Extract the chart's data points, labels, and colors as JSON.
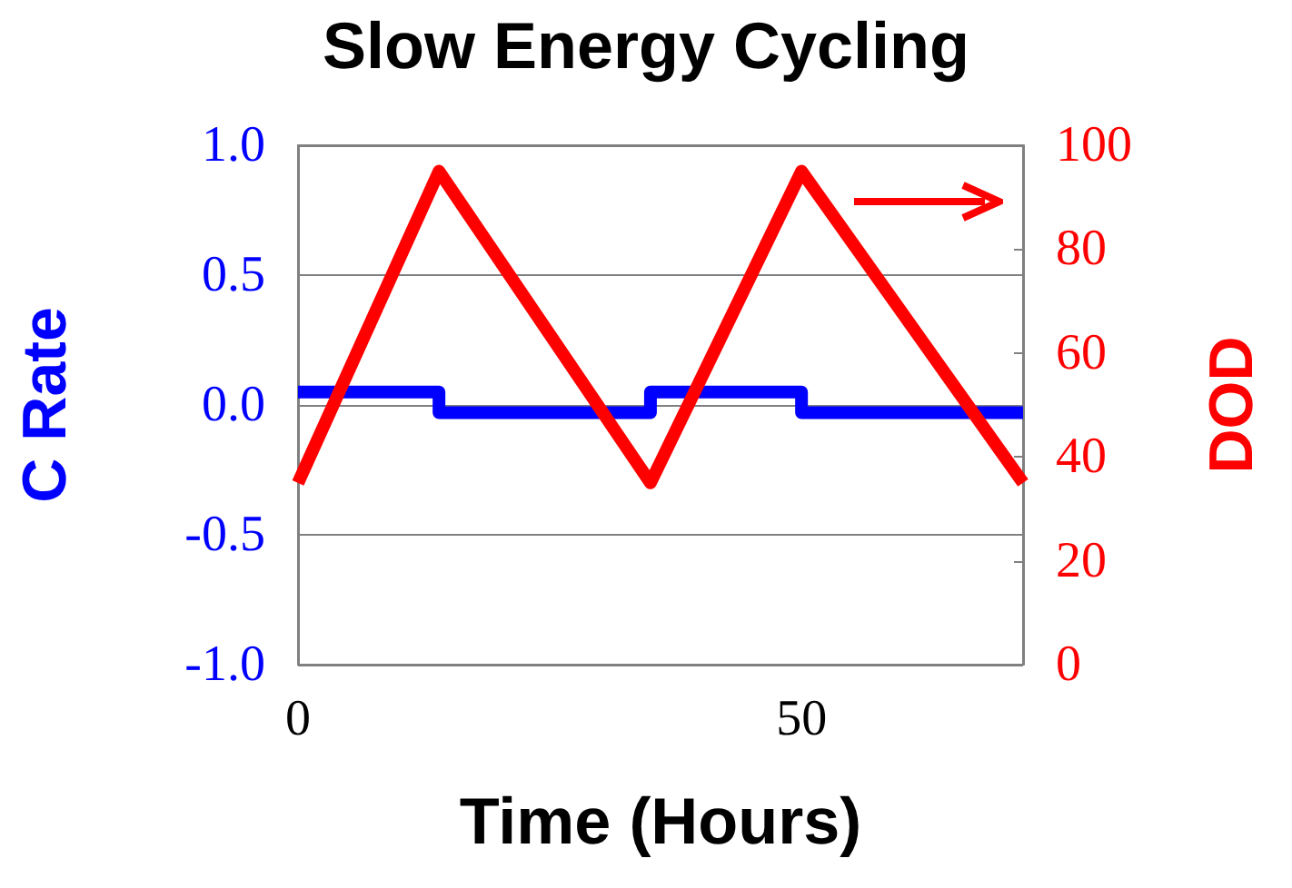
{
  "chart_data": {
    "type": "line",
    "title": "Slow Energy Cycling",
    "xlabel": "Time (Hours)",
    "ylabel": "C Rate",
    "y2label": "DOD",
    "xlim": [
      0,
      72
    ],
    "xticks": [
      0,
      50
    ],
    "ylim": [
      -1,
      1
    ],
    "yticks": [
      {
        "value": -1,
        "label": "-1.0"
      },
      {
        "value": -0.5,
        "label": "-0.5"
      },
      {
        "value": 0,
        "label": "0.0"
      },
      {
        "value": 0.5,
        "label": "0.5"
      },
      {
        "value": 1,
        "label": "1.0"
      }
    ],
    "y2lim": [
      0,
      100
    ],
    "y2ticks": [
      0,
      20,
      40,
      60,
      80,
      100
    ],
    "grid": "y",
    "marker": "none",
    "line_style": "solid",
    "series": [
      {
        "type": "step",
        "color": "#0000ff",
        "x": [
          0,
          14,
          35,
          50,
          72
        ],
        "values": [
          0.05,
          -0.03,
          0.05,
          -0.03,
          -0.03
        ]
      },
      {
        "color": "#ff0000",
        "axis": "y2",
        "x": [
          0,
          14,
          35,
          50,
          72
        ],
        "values": [
          35,
          95,
          35,
          95,
          35
        ]
      }
    ]
  }
}
